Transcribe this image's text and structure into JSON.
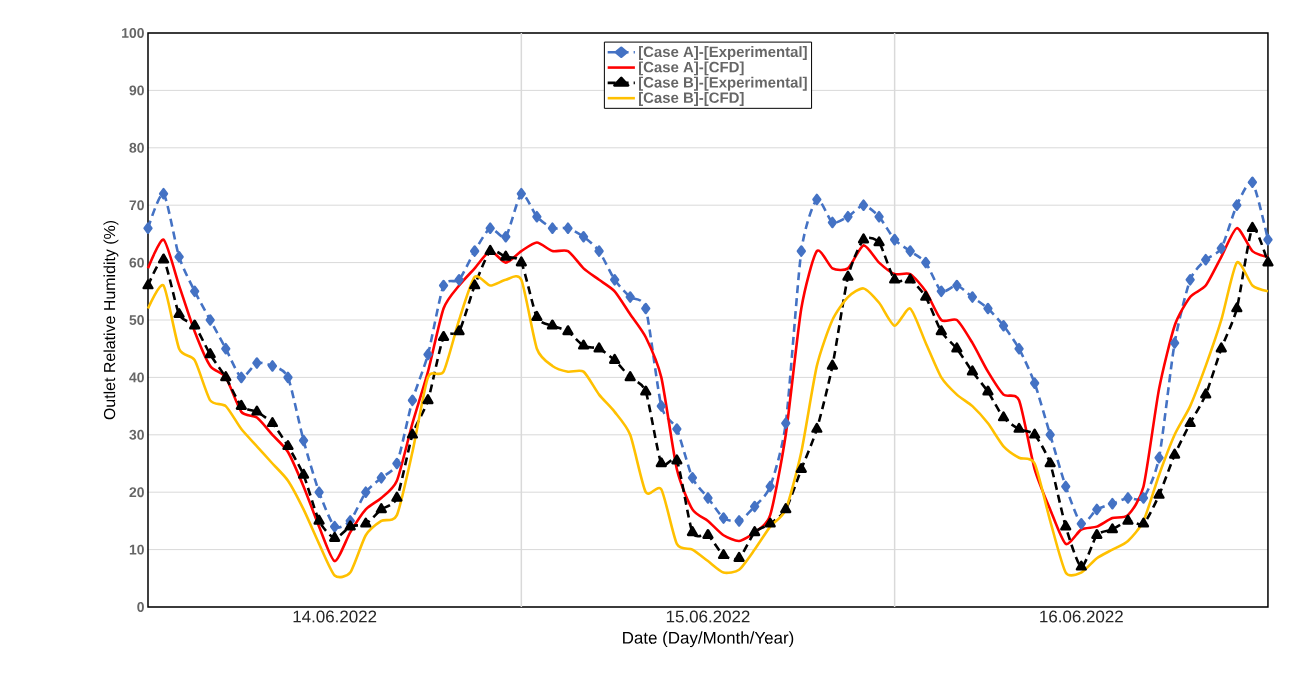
{
  "chart_data": {
    "type": "line",
    "xlabel": "Date (Day/Month/Year)",
    "ylabel": "Outlet Relative Humidity (%)",
    "xlim": [
      "2022-06-14T00:00",
      "2022-06-17T00:00"
    ],
    "xticks": [
      {
        "value": "2022-06-14T12:00",
        "label": "14.06.2022"
      },
      {
        "value": "2022-06-15T12:00",
        "label": "15.06.2022"
      },
      {
        "value": "2022-06-16T12:00",
        "label": "16.06.2022"
      }
    ],
    "ylim": [
      0,
      100
    ],
    "yticks": [
      0,
      10,
      20,
      30,
      40,
      50,
      60,
      70,
      80,
      90,
      100
    ],
    "grid": "y",
    "legend": "top",
    "ref_lines": [
      {
        "axis": "x",
        "value": "2022-06-15T00:00",
        "color": "#d9d9d9"
      },
      {
        "axis": "x",
        "value": "2022-06-16T00:00",
        "color": "#d9d9d9"
      }
    ],
    "x": [
      "2022-06-14T00:00",
      "2022-06-14T01:00",
      "2022-06-14T02:00",
      "2022-06-14T03:00",
      "2022-06-14T04:00",
      "2022-06-14T05:00",
      "2022-06-14T06:00",
      "2022-06-14T07:00",
      "2022-06-14T08:00",
      "2022-06-14T09:00",
      "2022-06-14T10:00",
      "2022-06-14T11:00",
      "2022-06-14T12:00",
      "2022-06-14T13:00",
      "2022-06-14T14:00",
      "2022-06-14T15:00",
      "2022-06-14T16:00",
      "2022-06-14T17:00",
      "2022-06-14T18:00",
      "2022-06-14T19:00",
      "2022-06-14T20:00",
      "2022-06-14T21:00",
      "2022-06-14T22:00",
      "2022-06-14T23:00",
      "2022-06-15T00:00",
      "2022-06-15T01:00",
      "2022-06-15T02:00",
      "2022-06-15T03:00",
      "2022-06-15T04:00",
      "2022-06-15T05:00",
      "2022-06-15T06:00",
      "2022-06-15T07:00",
      "2022-06-15T08:00",
      "2022-06-15T09:00",
      "2022-06-15T10:00",
      "2022-06-15T11:00",
      "2022-06-15T12:00",
      "2022-06-15T13:00",
      "2022-06-15T14:00",
      "2022-06-15T15:00",
      "2022-06-15T16:00",
      "2022-06-15T17:00",
      "2022-06-15T18:00",
      "2022-06-15T19:00",
      "2022-06-15T20:00",
      "2022-06-15T21:00",
      "2022-06-15T22:00",
      "2022-06-15T23:00",
      "2022-06-16T00:00",
      "2022-06-16T01:00",
      "2022-06-16T02:00",
      "2022-06-16T03:00",
      "2022-06-16T04:00",
      "2022-06-16T05:00",
      "2022-06-16T06:00",
      "2022-06-16T07:00",
      "2022-06-16T08:00",
      "2022-06-16T09:00",
      "2022-06-16T10:00",
      "2022-06-16T11:00",
      "2022-06-16T12:00",
      "2022-06-16T13:00",
      "2022-06-16T14:00",
      "2022-06-16T15:00",
      "2022-06-16T16:00",
      "2022-06-16T17:00",
      "2022-06-16T18:00",
      "2022-06-16T19:00",
      "2022-06-16T20:00",
      "2022-06-16T21:00",
      "2022-06-16T22:00",
      "2022-06-16T23:00",
      "2022-06-17T00:00"
    ],
    "series": [
      {
        "name": "[Case A]-[Experimental]",
        "color": "#4472c4",
        "marker": "diamond",
        "line_style": "dashed",
        "values": [
          66,
          72,
          61,
          55,
          50,
          45,
          40,
          42.5,
          42,
          40,
          29,
          20,
          14,
          15,
          20,
          22.5,
          25,
          36,
          44,
          56,
          57,
          62,
          66,
          64.5,
          72,
          68,
          66,
          66,
          64.5,
          62,
          57,
          54,
          52,
          35,
          31,
          22.5,
          19,
          15.5,
          15,
          17.5,
          21,
          32,
          62,
          71,
          67,
          68,
          70,
          68,
          64,
          62,
          60,
          55,
          56,
          54,
          52,
          49,
          45,
          39,
          30,
          21,
          14.5,
          17,
          18,
          19,
          19,
          26,
          46,
          57,
          60.5,
          62.5,
          70,
          74,
          64
        ]
      },
      {
        "name": "[Case A]-[CFD]",
        "color": "#ff0000",
        "marker": "none",
        "line_style": "solid",
        "values": [
          59,
          64,
          56,
          48,
          42,
          40,
          34,
          33,
          30,
          27,
          21,
          14,
          8,
          13,
          17,
          19,
          22,
          32,
          41,
          52,
          56,
          59,
          62,
          60,
          62,
          63.5,
          62,
          62,
          59,
          57,
          55,
          51,
          47,
          40,
          24,
          17,
          15,
          12.5,
          11.5,
          13,
          16,
          30,
          52,
          62,
          59,
          59,
          63,
          60,
          58,
          58,
          55,
          50,
          50,
          46,
          41,
          37,
          36,
          24,
          17,
          11,
          13.5,
          14,
          15.5,
          16,
          21,
          38,
          49,
          54,
          56,
          61,
          66,
          62,
          61
        ]
      },
      {
        "name": "[Case B]-[Experimental]",
        "color": "#000000",
        "marker": "triangle",
        "line_style": "dashed",
        "values": [
          56,
          60.5,
          51,
          49,
          44,
          40,
          35,
          34,
          32,
          28,
          23,
          15,
          12,
          14,
          14.5,
          17,
          19,
          30,
          36,
          47,
          48,
          56,
          62,
          61,
          60,
          50.5,
          49,
          48,
          45.5,
          45,
          43,
          40,
          37.5,
          25,
          25.5,
          13,
          12.5,
          9,
          8.5,
          13,
          14.5,
          17,
          24,
          31,
          42,
          57.5,
          64,
          63.5,
          57,
          57,
          54,
          48,
          45,
          41,
          37.5,
          33,
          31,
          30,
          25,
          14,
          7,
          12.5,
          13.5,
          15,
          14.5,
          19.5,
          26.5,
          32,
          37,
          45,
          52,
          66,
          60
        ]
      },
      {
        "name": "[Case B]-[CFD]",
        "color": "#ffc000",
        "marker": "none",
        "line_style": "solid",
        "values": [
          52,
          56,
          45,
          43,
          36,
          35,
          31,
          28,
          25,
          22,
          17,
          11,
          5.5,
          6,
          12.5,
          15,
          16,
          27,
          40,
          41,
          50,
          57.5,
          56,
          57,
          57,
          45,
          42,
          41,
          41,
          37,
          34,
          30,
          20,
          20.5,
          11,
          10,
          8,
          6,
          6.5,
          10,
          14,
          17,
          27,
          42,
          50,
          54,
          55.5,
          53,
          49,
          52,
          46,
          40,
          37,
          35,
          32,
          28,
          26,
          25,
          15,
          6,
          6,
          8.5,
          10,
          11.5,
          15,
          23,
          30,
          35,
          42,
          50,
          60,
          56,
          55
        ]
      }
    ]
  }
}
